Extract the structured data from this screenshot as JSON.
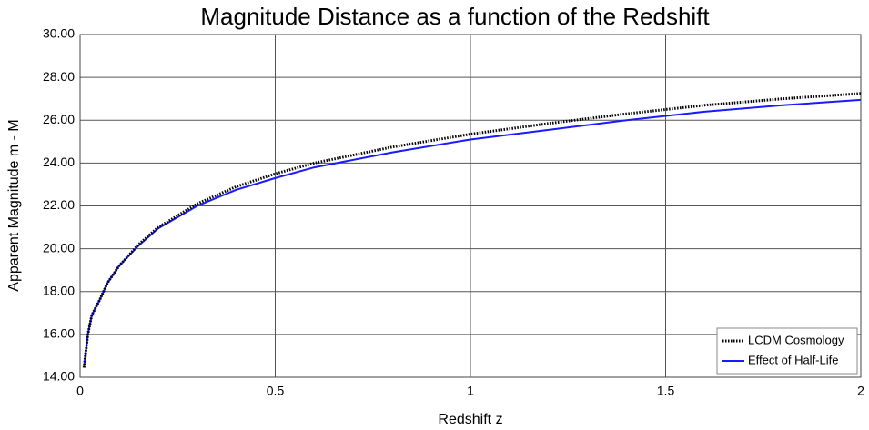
{
  "chart_data": {
    "type": "line",
    "title": "Magnitude Distance as a function of the Redshift",
    "x_label": "Redshift  z",
    "y_label": "Apparent Magnitude m - M",
    "x": [
      0.01,
      0.02,
      0.03,
      0.05,
      0.07,
      0.1,
      0.15,
      0.2,
      0.3,
      0.4,
      0.5,
      0.6,
      0.8,
      1.0,
      1.2,
      1.4,
      1.6,
      1.8,
      2.0
    ],
    "series": [
      {
        "name": "LCDM Cosmology",
        "color": "#000000",
        "dash": "dotted",
        "values": [
          14.45,
          16.0,
          16.9,
          17.6,
          18.4,
          19.2,
          20.2,
          21.0,
          22.1,
          22.9,
          23.5,
          24.0,
          24.75,
          25.35,
          25.85,
          26.3,
          26.7,
          27.0,
          27.25
        ]
      },
      {
        "name": "Effect of Half-Life",
        "color": "#1a1aff",
        "dash": "solid",
        "values": [
          14.45,
          16.0,
          16.9,
          17.6,
          18.4,
          19.2,
          20.15,
          20.95,
          22.0,
          22.75,
          23.3,
          23.8,
          24.5,
          25.1,
          25.55,
          26.0,
          26.4,
          26.7,
          26.95
        ]
      }
    ],
    "xlim": [
      0,
      2
    ],
    "xticks": [
      0,
      0.5,
      1,
      1.5,
      2
    ],
    "ylim": [
      14,
      30
    ],
    "yticks": [
      {
        "value": 14,
        "label": "14.00"
      },
      {
        "value": 16,
        "label": "16.00"
      },
      {
        "value": 18,
        "label": "18.00"
      },
      {
        "value": 20,
        "label": "20.00"
      },
      {
        "value": 22,
        "label": "22.00"
      },
      {
        "value": 24,
        "label": "24.00"
      },
      {
        "value": 26,
        "label": "26.00"
      },
      {
        "value": 28,
        "label": "28.00"
      },
      {
        "value": 30,
        "label": "30.00"
      }
    ],
    "grid": true,
    "legend": "lower right"
  }
}
